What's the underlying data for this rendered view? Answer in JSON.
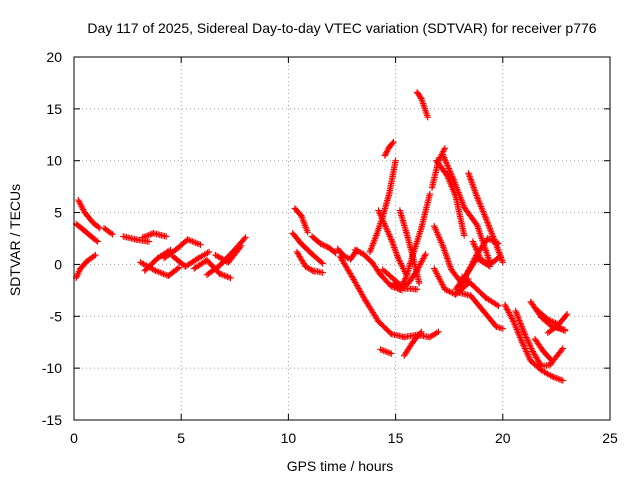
{
  "chart_data": {
    "type": "scatter",
    "title": "Day 117 of 2025, Sidereal Day-to-day VTEC variation (SDTVAR) for receiver p776",
    "xlabel": "GPS time / hours",
    "ylabel": "SDTVAR / TECUs",
    "xlim": [
      0,
      25
    ],
    "ylim": [
      -15,
      20
    ],
    "xticks": [
      0,
      5,
      10,
      15,
      20,
      25
    ],
    "xtick_labels": [
      "0",
      "5",
      "10",
      "15",
      "20",
      "25"
    ],
    "yticks": [
      -15,
      -10,
      -5,
      0,
      5,
      10,
      15,
      20
    ],
    "ytick_labels": [
      "-15",
      "-10",
      "-5",
      "0",
      "5",
      "10",
      "15",
      "20"
    ],
    "grid": true,
    "marker": "+",
    "series_color": "#ff0000",
    "segments": [
      {
        "x": [
          0.2,
          0.5,
          0.9,
          1.2
        ],
        "y": [
          6.2,
          5.0,
          4.0,
          3.5
        ]
      },
      {
        "x": [
          0.1,
          0.4,
          0.8,
          1.1
        ],
        "y": [
          3.9,
          3.4,
          2.7,
          2.2
        ]
      },
      {
        "x": [
          0.1,
          0.3,
          0.6,
          1.0
        ],
        "y": [
          -1.3,
          -0.4,
          0.3,
          0.9
        ]
      },
      {
        "x": [
          1.4,
          1.8
        ],
        "y": [
          3.5,
          2.9
        ]
      },
      {
        "x": [
          2.3,
          2.9,
          3.5
        ],
        "y": [
          2.7,
          2.4,
          2.2
        ]
      },
      {
        "x": [
          3.2,
          3.7,
          4.3
        ],
        "y": [
          2.6,
          3.0,
          2.7
        ]
      },
      {
        "x": [
          3.1,
          3.8,
          4.4,
          4.9
        ],
        "y": [
          0.2,
          -0.6,
          -1.1,
          -0.3
        ]
      },
      {
        "x": [
          3.3,
          3.9,
          4.5
        ],
        "y": [
          -0.6,
          0.6,
          1.4
        ]
      },
      {
        "x": [
          4.2,
          4.8,
          5.3,
          5.9
        ],
        "y": [
          0.6,
          1.5,
          2.4,
          1.9
        ]
      },
      {
        "x": [
          4.6,
          5.2,
          5.8,
          6.3
        ],
        "y": [
          0.8,
          -0.2,
          0.6,
          1.2
        ]
      },
      {
        "x": [
          5.6,
          6.2,
          6.8,
          7.3
        ],
        "y": [
          -0.4,
          0.4,
          -0.9,
          -1.3
        ]
      },
      {
        "x": [
          6.2,
          6.8,
          7.4,
          8.0
        ],
        "y": [
          -1.0,
          -0.1,
          1.2,
          2.6
        ]
      },
      {
        "x": [
          6.6,
          7.2,
          7.8
        ],
        "y": [
          0.9,
          0.2,
          1.8
        ]
      },
      {
        "x": [
          10.3,
          10.6,
          10.9
        ],
        "y": [
          5.4,
          4.7,
          3.1
        ]
      },
      {
        "x": [
          10.2,
          10.6,
          11.1,
          11.6
        ],
        "y": [
          3.0,
          2.0,
          1.0,
          0.1
        ]
      },
      {
        "x": [
          10.4,
          10.8,
          11.2
        ],
        "y": [
          1.2,
          -0.2,
          -0.7
        ]
      },
      {
        "x": [
          11.2,
          11.6
        ],
        "y": [
          -0.6,
          -0.8
        ]
      },
      {
        "x": [
          11.1,
          11.5,
          11.9,
          12.2
        ],
        "y": [
          2.7,
          2.0,
          1.6,
          1.1
        ]
      },
      {
        "x": [
          12.3,
          12.6,
          12.9,
          13.2
        ],
        "y": [
          1.5,
          0.8,
          0.5,
          1.4
        ]
      },
      {
        "x": [
          12.4,
          13.0,
          13.6,
          14.2,
          14.8,
          15.4,
          16.0,
          16.6,
          17.0
        ],
        "y": [
          0.8,
          -1.3,
          -3.5,
          -5.5,
          -6.7,
          -7.0,
          -6.8,
          -7.0,
          -6.5
        ]
      },
      {
        "x": [
          13.1,
          13.5,
          13.9,
          14.3,
          14.8,
          15.3
        ],
        "y": [
          1.4,
          1.0,
          0.2,
          -1.0,
          -2.1,
          -2.5
        ]
      },
      {
        "x": [
          13.8,
          14.1,
          14.4,
          14.7,
          15.0
        ],
        "y": [
          1.2,
          2.8,
          4.6,
          6.8,
          10.0
        ]
      },
      {
        "x": [
          14.2,
          14.5,
          14.8,
          15.1,
          15.5
        ],
        "y": [
          5.2,
          3.8,
          2.4,
          0.7,
          -1.0
        ]
      },
      {
        "x": [
          14.4,
          14.9,
          15.4,
          16.0
        ],
        "y": [
          -0.5,
          -1.4,
          -2.3,
          -2.4
        ]
      },
      {
        "x": [
          14.9,
          15.2,
          15.6,
          16.0,
          16.4
        ],
        "y": [
          -1.8,
          -2.3,
          -1.8,
          -0.6,
          1.0
        ]
      },
      {
        "x": [
          14.5,
          14.7,
          14.9
        ],
        "y": [
          10.5,
          11.3,
          11.8
        ]
      },
      {
        "x": [
          15.2,
          15.5,
          15.8,
          16.2,
          16.6
        ],
        "y": [
          -2.4,
          -1.2,
          0.9,
          3.5,
          6.8
        ]
      },
      {
        "x": [
          15.2,
          15.5,
          15.8,
          16.1
        ],
        "y": [
          5.2,
          3.1,
          0.8,
          -1.8
        ]
      },
      {
        "x": [
          14.3,
          14.8
        ],
        "y": [
          -8.2,
          -8.6
        ]
      },
      {
        "x": [
          15.4,
          15.8,
          16.2
        ],
        "y": [
          -8.8,
          -7.5,
          -6.5
        ]
      },
      {
        "x": [
          16.0,
          16.2,
          16.5
        ],
        "y": [
          16.6,
          16.0,
          14.2
        ]
      },
      {
        "x": [
          16.7,
          17.0,
          17.3
        ],
        "y": [
          7.4,
          10.0,
          11.2
        ]
      },
      {
        "x": [
          16.9,
          17.4,
          17.8,
          18.2
        ],
        "y": [
          10.0,
          8.6,
          6.6,
          2.8
        ]
      },
      {
        "x": [
          16.8,
          17.2,
          17.6,
          18.0,
          18.4
        ],
        "y": [
          3.7,
          1.8,
          -0.5,
          -1.6,
          -1.4
        ]
      },
      {
        "x": [
          17.2,
          17.7,
          18.2,
          18.8,
          19.4
        ],
        "y": [
          10.6,
          8.2,
          5.5,
          3.8,
          0.2
        ]
      },
      {
        "x": [
          16.8,
          17.3,
          17.8,
          18.4
        ],
        "y": [
          -0.4,
          -2.4,
          -2.9,
          -1.8
        ]
      },
      {
        "x": [
          17.9,
          18.5,
          19.1,
          19.7,
          20.0
        ],
        "y": [
          -2.7,
          -3.0,
          -4.5,
          -6.0,
          -6.2
        ]
      },
      {
        "x": [
          18.1,
          18.6,
          19.2,
          19.8
        ],
        "y": [
          -1.2,
          -2.0,
          -3.2,
          -4.0
        ]
      },
      {
        "x": [
          17.8,
          18.3,
          18.8,
          19.4
        ],
        "y": [
          -2.4,
          -1.0,
          0.6,
          -0.2
        ]
      },
      {
        "x": [
          18.0,
          18.4,
          18.8,
          19.3,
          19.8
        ],
        "y": [
          -2.2,
          -0.6,
          1.0,
          2.5,
          2.0
        ]
      },
      {
        "x": [
          18.4,
          18.8,
          19.2,
          19.6,
          20.0
        ],
        "y": [
          8.8,
          6.5,
          4.5,
          2.4,
          0.2
        ]
      },
      {
        "x": [
          18.6,
          19.0,
          19.4,
          19.9
        ],
        "y": [
          2.2,
          0.4,
          0.0,
          0.8
        ]
      },
      {
        "x": [
          20.1,
          20.5,
          20.9,
          21.3,
          21.8,
          22.3,
          22.8
        ],
        "y": [
          -3.9,
          -5.5,
          -7.5,
          -9.3,
          -10.2,
          -10.8,
          -11.2
        ]
      },
      {
        "x": [
          20.6,
          21.0,
          21.4,
          21.8,
          22.2,
          22.8
        ],
        "y": [
          -4.5,
          -6.6,
          -8.4,
          -9.8,
          -9.7,
          -8.1
        ]
      },
      {
        "x": [
          21.3,
          21.8,
          22.3,
          22.9
        ],
        "y": [
          -3.6,
          -5.1,
          -6.0,
          -6.3
        ]
      },
      {
        "x": [
          21.6,
          22.1,
          22.6,
          23.0
        ],
        "y": [
          -4.4,
          -5.3,
          -5.8,
          -4.8
        ]
      },
      {
        "x": [
          21.5,
          21.9,
          22.3
        ],
        "y": [
          -7.2,
          -8.4,
          -9.3
        ]
      },
      {
        "x": [
          22.1,
          22.5,
          22.9
        ],
        "y": [
          -6.6,
          -6.0,
          -6.4
        ]
      }
    ]
  }
}
